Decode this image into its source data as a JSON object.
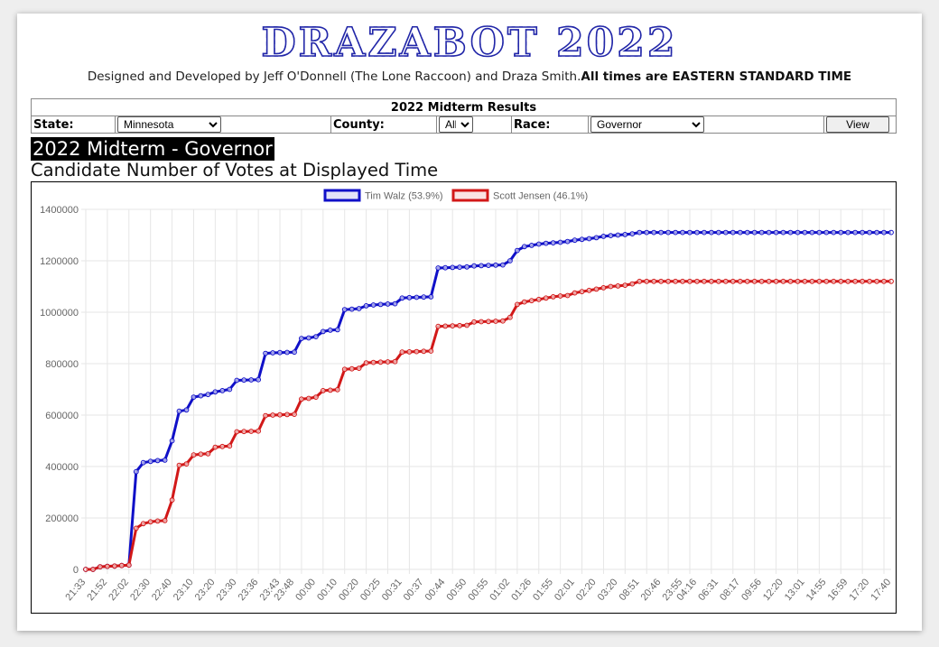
{
  "header": {
    "logo": "DRAZABOT 2022",
    "credits": "Designed and Developed by Jeff O'Donnell (The Lone Raccoon) and Draza Smith.",
    "timezone_note": "All times are EASTERN STANDARD TIME"
  },
  "results": {
    "title": "2022 Midterm Results",
    "state_label": "State:",
    "state_value": "Minnesota",
    "county_label": "County:",
    "county_value": "All",
    "race_label": "Race:",
    "race_value": "Governor",
    "view_label": "View"
  },
  "race_heading": "2022 Midterm - Governor",
  "chart_heading": "Candidate Number of Votes at Displayed Time",
  "colors": {
    "walz": "#1010c8",
    "jensen": "#d21818",
    "grid": "#e6e6e6"
  },
  "chart_data": {
    "type": "line",
    "ylim": [
      0,
      1400000
    ],
    "yticks": [
      0,
      200000,
      400000,
      600000,
      800000,
      1000000,
      1200000,
      1400000
    ],
    "legend_position": "top-center",
    "grid": true,
    "x_tick_labels": [
      "21:33",
      "21:52",
      "22:02",
      "22:30",
      "22:40",
      "23:10",
      "23:20",
      "23:30",
      "23:36",
      "23:43",
      "23:48",
      "00:00",
      "00:10",
      "00:20",
      "00:25",
      "00:31",
      "00:37",
      "00:44",
      "00:50",
      "00:55",
      "01:02",
      "01:26",
      "01:55",
      "02:01",
      "02:20",
      "03:20",
      "08:51",
      "20:46",
      "23:55",
      "04:16",
      "06:31",
      "08:17",
      "09:56",
      "12:20",
      "13:01",
      "14:55",
      "16:59",
      "17:20",
      "17:40"
    ],
    "series": [
      {
        "name": "Tim Walz (53.9%)",
        "color": "#1010c8",
        "values": [
          0,
          0,
          10000,
          12000,
          13000,
          15000,
          17000,
          380000,
          415000,
          420000,
          423000,
          425000,
          500000,
          615000,
          620000,
          670000,
          675000,
          680000,
          690000,
          695000,
          700000,
          735000,
          736000,
          737000,
          738000,
          840000,
          842000,
          843000,
          844000,
          845000,
          898000,
          900000,
          905000,
          925000,
          930000,
          932000,
          1010000,
          1012000,
          1014000,
          1025000,
          1028000,
          1030000,
          1032000,
          1033000,
          1055000,
          1057000,
          1058000,
          1059000,
          1060000,
          1172000,
          1173000,
          1174000,
          1175000,
          1176000,
          1180000,
          1181000,
          1182000,
          1183000,
          1184000,
          1200000,
          1240000,
          1255000,
          1260000,
          1265000,
          1268000,
          1270000,
          1272000,
          1275000,
          1280000,
          1283000,
          1286000,
          1290000,
          1295000,
          1298000,
          1300000,
          1302000,
          1305000,
          1310000,
          1310000,
          1310000,
          1310000,
          1310000,
          1310000,
          1310000,
          1310000,
          1310000,
          1310000,
          1310000,
          1310000,
          1310000,
          1310000,
          1310000,
          1310000,
          1310000,
          1310000,
          1310000,
          1310000,
          1310000,
          1310000,
          1310000,
          1310000,
          1310000,
          1310000,
          1310000,
          1310000,
          1310000,
          1310000,
          1310000,
          1310000,
          1310000,
          1310000,
          1310000,
          1310000
        ]
      },
      {
        "name": "Scott Jensen (46.1%)",
        "color": "#d21818",
        "values": [
          0,
          0,
          10000,
          12000,
          13000,
          15000,
          17000,
          160000,
          178000,
          185000,
          188000,
          190000,
          270000,
          405000,
          410000,
          445000,
          448000,
          450000,
          475000,
          478000,
          480000,
          535000,
          536000,
          537000,
          538000,
          598000,
          600000,
          601000,
          602000,
          603000,
          662000,
          665000,
          670000,
          695000,
          697000,
          699000,
          778000,
          780000,
          782000,
          803000,
          805000,
          806000,
          807000,
          808000,
          845000,
          846000,
          847000,
          848000,
          849000,
          945000,
          946000,
          947000,
          948000,
          949000,
          962000,
          963000,
          964000,
          965000,
          966000,
          980000,
          1030000,
          1040000,
          1045000,
          1050000,
          1055000,
          1060000,
          1063000,
          1065000,
          1075000,
          1080000,
          1085000,
          1090000,
          1095000,
          1100000,
          1102000,
          1105000,
          1110000,
          1120000,
          1120000,
          1120000,
          1120000,
          1120000,
          1120000,
          1120000,
          1120000,
          1120000,
          1120000,
          1120000,
          1120000,
          1120000,
          1120000,
          1120000,
          1120000,
          1120000,
          1120000,
          1120000,
          1120000,
          1120000,
          1120000,
          1120000,
          1120000,
          1120000,
          1120000,
          1120000,
          1120000,
          1120000,
          1120000,
          1120000,
          1120000,
          1120000,
          1120000,
          1120000,
          1120000
        ]
      }
    ]
  }
}
